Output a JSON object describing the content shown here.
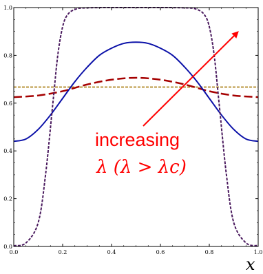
{
  "chart_data": {
    "type": "line",
    "xlabel": "x",
    "ylabel": "",
    "xlim": [
      0,
      1
    ],
    "ylim": [
      0,
      1
    ],
    "x_ticks": [
      "0.0",
      "0.2",
      "0.4",
      "0.6",
      "0.8",
      "1.0"
    ],
    "y_ticks": [
      "0.0",
      "0.2",
      "0.4",
      "0.6",
      "0.8",
      "1.0"
    ],
    "grid": false,
    "annotation": {
      "line1": "increasing",
      "line2": "λ  (λ > λc)",
      "color": "#ff0000"
    },
    "series": [
      {
        "style": "dashed",
        "color": "#b8963c",
        "x": [
          0,
          0.1,
          0.2,
          0.3,
          0.4,
          0.5,
          0.6,
          0.7,
          0.8,
          0.9,
          1.0
        ],
        "y": [
          0.667,
          0.667,
          0.667,
          0.667,
          0.667,
          0.667,
          0.667,
          0.667,
          0.667,
          0.667,
          0.667
        ]
      },
      {
        "style": "long-dashed",
        "color": "#a50000",
        "x": [
          0,
          0.1,
          0.2,
          0.3,
          0.4,
          0.5,
          0.6,
          0.7,
          0.8,
          0.9,
          1.0
        ],
        "y": [
          0.625,
          0.632,
          0.65,
          0.678,
          0.698,
          0.706,
          0.698,
          0.678,
          0.65,
          0.632,
          0.625
        ]
      },
      {
        "style": "solid",
        "color": "#0a10a8",
        "x": [
          0,
          0.05,
          0.1,
          0.15,
          0.2,
          0.25,
          0.3,
          0.35,
          0.4,
          0.45,
          0.5,
          0.55,
          0.6,
          0.65,
          0.7,
          0.75,
          0.8,
          0.85,
          0.9,
          0.95,
          1.0
        ],
        "y": [
          0.44,
          0.45,
          0.49,
          0.55,
          0.62,
          0.69,
          0.75,
          0.8,
          0.83,
          0.85,
          0.855,
          0.85,
          0.83,
          0.8,
          0.75,
          0.69,
          0.62,
          0.55,
          0.49,
          0.45,
          0.44
        ]
      },
      {
        "style": "dashed",
        "color": "#4a1a5e",
        "x": [
          0,
          0.05,
          0.1,
          0.13,
          0.16,
          0.18,
          0.2,
          0.22,
          0.25,
          0.3,
          0.5,
          0.7,
          0.75,
          0.78,
          0.8,
          0.82,
          0.84,
          0.87,
          0.9,
          0.95,
          1.0
        ],
        "y": [
          0.003,
          0.015,
          0.1,
          0.3,
          0.6,
          0.8,
          0.92,
          0.97,
          0.992,
          0.999,
          1.0,
          0.999,
          0.992,
          0.97,
          0.92,
          0.8,
          0.6,
          0.3,
          0.1,
          0.015,
          0.003
        ]
      }
    ]
  }
}
